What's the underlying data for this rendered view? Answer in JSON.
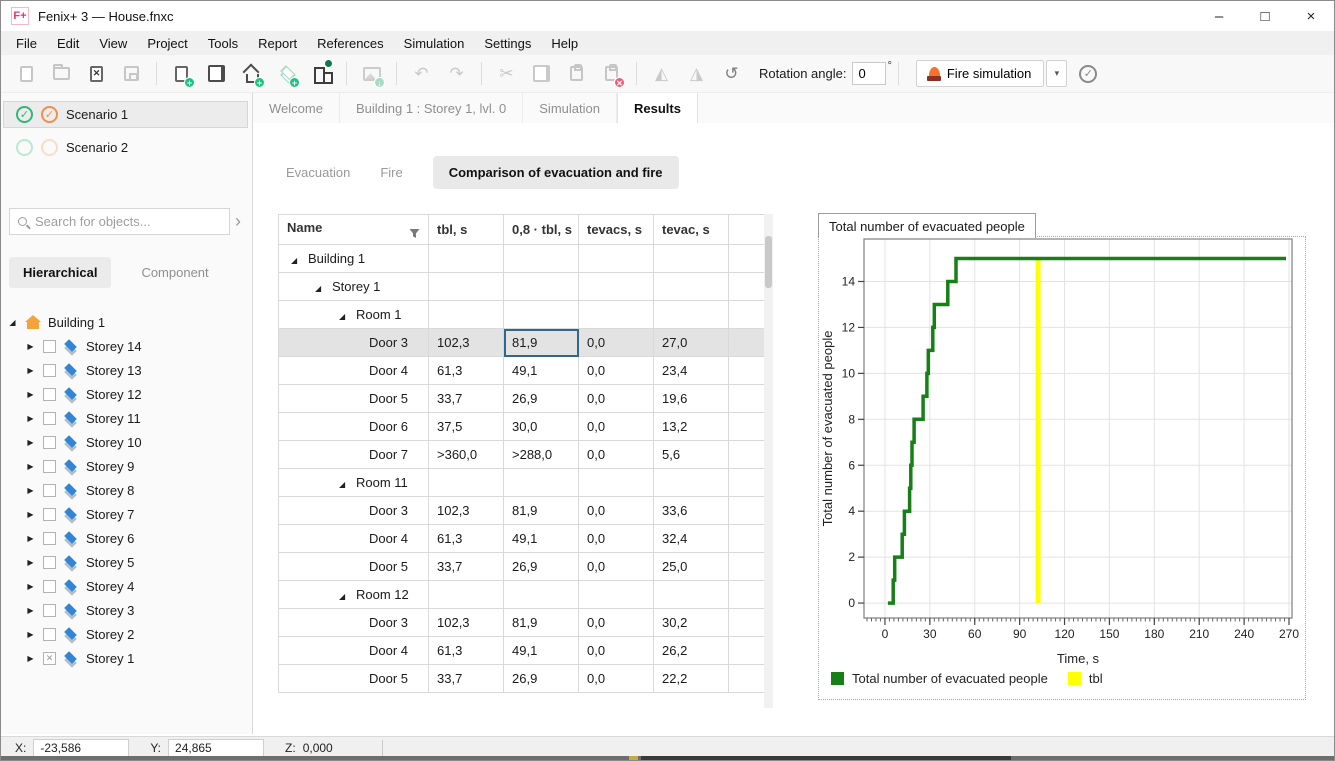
{
  "window": {
    "badge": "F+",
    "title": "Fenix+ 3 — House.fnxc",
    "controls": {
      "minimize": "–",
      "maximize": "□",
      "close": "×"
    }
  },
  "menu": {
    "items": [
      "File",
      "Edit",
      "View",
      "Project",
      "Tools",
      "Report",
      "References",
      "Simulation",
      "Settings",
      "Help"
    ]
  },
  "toolbar": {
    "icons": [
      {
        "name": "new-project-icon",
        "type": "doc",
        "disabled": true
      },
      {
        "name": "open-project-icon",
        "type": "folder",
        "disabled": true
      },
      {
        "name": "close-project-icon",
        "type": "doc-x",
        "disabled": false
      },
      {
        "name": "save-project-icon",
        "type": "floppy",
        "disabled": true
      },
      {
        "sep": true
      },
      {
        "name": "add-scenario-icon",
        "type": "doc",
        "badge": "plus"
      },
      {
        "name": "copy-scenario-icon",
        "type": "doc2"
      },
      {
        "name": "add-building-icon",
        "type": "house",
        "badge": "plus"
      },
      {
        "name": "add-storey-icon",
        "type": "layers",
        "badge": "plus",
        "disabled": true
      },
      {
        "name": "add-structure-icon",
        "type": "blocks",
        "badge": "pin"
      },
      {
        "sep": true
      },
      {
        "name": "import-image-icon",
        "type": "image",
        "badge": "down",
        "disabled": true
      },
      {
        "sep": true
      },
      {
        "name": "undo-icon",
        "type": "glyph",
        "glyph": "↶",
        "disabled": true
      },
      {
        "name": "redo-icon",
        "type": "glyph",
        "glyph": "↷",
        "disabled": true
      },
      {
        "sep": true
      },
      {
        "name": "cut-icon",
        "type": "glyph",
        "glyph": "✂",
        "disabled": true
      },
      {
        "name": "copy-icon",
        "type": "doc2",
        "disabled": true
      },
      {
        "name": "paste-icon",
        "type": "clipboard",
        "disabled": true
      },
      {
        "name": "delete-icon",
        "type": "clipboard",
        "badge": "del",
        "disabled": true
      },
      {
        "sep": true
      },
      {
        "name": "flip-horizontal-icon",
        "type": "glyph",
        "glyph": "◭",
        "disabled": true
      },
      {
        "name": "flip-vertical-icon",
        "type": "glyph",
        "glyph": "◮",
        "disabled": true
      },
      {
        "name": "rotate-icon",
        "type": "glyph",
        "glyph": "↺",
        "disabled": false
      }
    ],
    "rotation_label": "Rotation angle:",
    "rotation_value": "0",
    "rotation_unit": "°",
    "fire_button_label": "Fire simulation",
    "dropdown_glyph": "▾",
    "validate_glyph": "✓"
  },
  "scenarios": {
    "items": [
      {
        "label": "Scenario 1",
        "checked": true,
        "active": true
      },
      {
        "label": "Scenario 2",
        "checked": false,
        "active": false
      }
    ]
  },
  "sidebar": {
    "search_placeholder": "Search for objects...",
    "search_expand_glyph": "›",
    "view_tabs": [
      {
        "label": "Hierarchical",
        "active": true
      },
      {
        "label": "Component",
        "active": false
      }
    ],
    "tree": {
      "root": {
        "label": "Building 1"
      },
      "storeys": [
        {
          "label": "Storey 14",
          "checked": false
        },
        {
          "label": "Storey 13",
          "checked": false
        },
        {
          "label": "Storey 12",
          "checked": false
        },
        {
          "label": "Storey 11",
          "checked": false
        },
        {
          "label": "Storey 10",
          "checked": false
        },
        {
          "label": "Storey 9",
          "checked": false
        },
        {
          "label": "Storey 8",
          "checked": false
        },
        {
          "label": "Storey 7",
          "checked": false
        },
        {
          "label": "Storey 6",
          "checked": false
        },
        {
          "label": "Storey 5",
          "checked": false
        },
        {
          "label": "Storey 4",
          "checked": false
        },
        {
          "label": "Storey 3",
          "checked": false
        },
        {
          "label": "Storey 2",
          "checked": false
        },
        {
          "label": "Storey 1",
          "checked": true
        }
      ]
    }
  },
  "main_tabs": [
    {
      "label": "Welcome",
      "active": false
    },
    {
      "label": "Building 1 : Storey 1, lvl. 0",
      "active": false
    },
    {
      "label": "Simulation",
      "active": false
    },
    {
      "label": "Results",
      "active": true
    }
  ],
  "result_tabs": [
    {
      "label": "Evacuation",
      "active": false
    },
    {
      "label": "Fire",
      "active": false
    },
    {
      "label": "Comparison of evacuation and fire",
      "active": true
    }
  ],
  "table": {
    "columns": [
      {
        "label": "Name",
        "filter": true
      },
      {
        "label": "tbl, s"
      },
      {
        "label": "0,8 · tbl, s"
      },
      {
        "label": "tevacs, s"
      },
      {
        "label": "tevac, s"
      },
      {
        "label": ""
      }
    ],
    "rows": [
      {
        "name": "Building 1",
        "level": 0,
        "group": true
      },
      {
        "name": "Storey 1",
        "level": 1,
        "group": true
      },
      {
        "name": "Room 1",
        "level": 2,
        "group": true
      },
      {
        "name": "Door 3",
        "level": 3,
        "values": [
          "102,3",
          "81,9",
          "0,0",
          "27,0"
        ],
        "selected": true,
        "selected_cell": 1
      },
      {
        "name": "Door 4",
        "level": 3,
        "values": [
          "61,3",
          "49,1",
          "0,0",
          "23,4"
        ]
      },
      {
        "name": "Door 5",
        "level": 3,
        "values": [
          "33,7",
          "26,9",
          "0,0",
          "19,6"
        ]
      },
      {
        "name": "Door 6",
        "level": 3,
        "values": [
          "37,5",
          "30,0",
          "0,0",
          "13,2"
        ]
      },
      {
        "name": "Door 7",
        "level": 3,
        "values": [
          ">360,0",
          ">288,0",
          "0,0",
          "5,6"
        ]
      },
      {
        "name": "Room 11",
        "level": 2,
        "group": true
      },
      {
        "name": "Door 3",
        "level": 3,
        "values": [
          "102,3",
          "81,9",
          "0,0",
          "33,6"
        ]
      },
      {
        "name": "Door 4",
        "level": 3,
        "values": [
          "61,3",
          "49,1",
          "0,0",
          "32,4"
        ]
      },
      {
        "name": "Door 5",
        "level": 3,
        "values": [
          "33,7",
          "26,9",
          "0,0",
          "25,0"
        ]
      },
      {
        "name": "Room 12",
        "level": 2,
        "group": true
      },
      {
        "name": "Door 3",
        "level": 3,
        "values": [
          "102,3",
          "81,9",
          "0,0",
          "30,2"
        ]
      },
      {
        "name": "Door 4",
        "level": 3,
        "values": [
          "61,3",
          "49,1",
          "0,0",
          "26,2"
        ]
      },
      {
        "name": "Door 5",
        "level": 3,
        "values": [
          "33,7",
          "26,9",
          "0,0",
          "22,2"
        ]
      }
    ]
  },
  "chart_data": {
    "type": "line",
    "title": "Total number of evacuated people",
    "xlabel": "Time, s",
    "ylabel": "Total number of evacuated people",
    "x_ticks": [
      0,
      30,
      60,
      90,
      120,
      150,
      180,
      210,
      240,
      270
    ],
    "y_ticks": [
      0,
      2,
      4,
      6,
      8,
      10,
      12,
      14
    ],
    "xlim": [
      -14,
      272
    ],
    "ylim": [
      -0.65,
      15.85
    ],
    "grid": true,
    "legend_position": "bottom-left",
    "series": [
      {
        "name": "Total number of evacuated people",
        "type": "step",
        "color": "#168016",
        "points": [
          [
            2,
            0
          ],
          [
            5.5,
            0
          ],
          [
            5.5,
            1
          ],
          [
            6.5,
            1
          ],
          [
            6.5,
            2
          ],
          [
            11.5,
            2
          ],
          [
            11.5,
            3
          ],
          [
            13,
            3
          ],
          [
            13,
            4
          ],
          [
            16.5,
            4
          ],
          [
            16.5,
            5
          ],
          [
            17.3,
            5
          ],
          [
            17.3,
            6
          ],
          [
            18.1,
            6
          ],
          [
            18.1,
            7
          ],
          [
            19.5,
            7
          ],
          [
            19.5,
            8
          ],
          [
            25.5,
            8
          ],
          [
            25.5,
            9
          ],
          [
            28,
            9
          ],
          [
            28,
            10
          ],
          [
            29,
            10
          ],
          [
            29,
            11
          ],
          [
            32,
            11
          ],
          [
            32,
            12
          ],
          [
            33,
            12
          ],
          [
            33,
            13
          ],
          [
            42,
            13
          ],
          [
            42,
            14
          ],
          [
            47.5,
            14
          ],
          [
            47.5,
            15
          ],
          [
            268,
            15
          ]
        ]
      },
      {
        "name": "tbl",
        "type": "vline",
        "color": "#ffff00",
        "x": 102.3,
        "y_from": 0,
        "y_to": 15
      }
    ]
  },
  "statusbar": {
    "x_label": "X:",
    "x_value": "-23,586",
    "y_label": "Y:",
    "y_value": "24,865",
    "z_label": "Z:",
    "z_value": "0,000"
  }
}
